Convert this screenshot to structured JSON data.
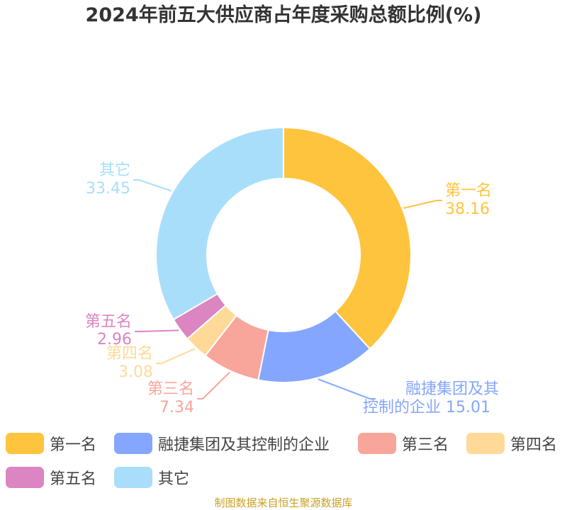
{
  "title": "2024年前五大供应商占年度采购总额比例(%)",
  "source": "制图数据来自恒生聚源数据库",
  "chart_data": {
    "type": "pie",
    "donut": true,
    "categories": [
      "第一名",
      "融捷集团及其控制的企业",
      "第三名",
      "第四名",
      "第五名",
      "其它"
    ],
    "values": [
      38.16,
      15.01,
      7.34,
      3.08,
      2.96,
      33.45
    ],
    "value_labels": [
      "38.16",
      "15.01",
      "7.34",
      "3.08",
      "2.96",
      "33.45"
    ],
    "colors": [
      "#FFC43D",
      "#84A6FE",
      "#F8A59B",
      "#FFD998",
      "#DB85C2",
      "#A8DEFA"
    ],
    "legend_position": "bottom"
  }
}
